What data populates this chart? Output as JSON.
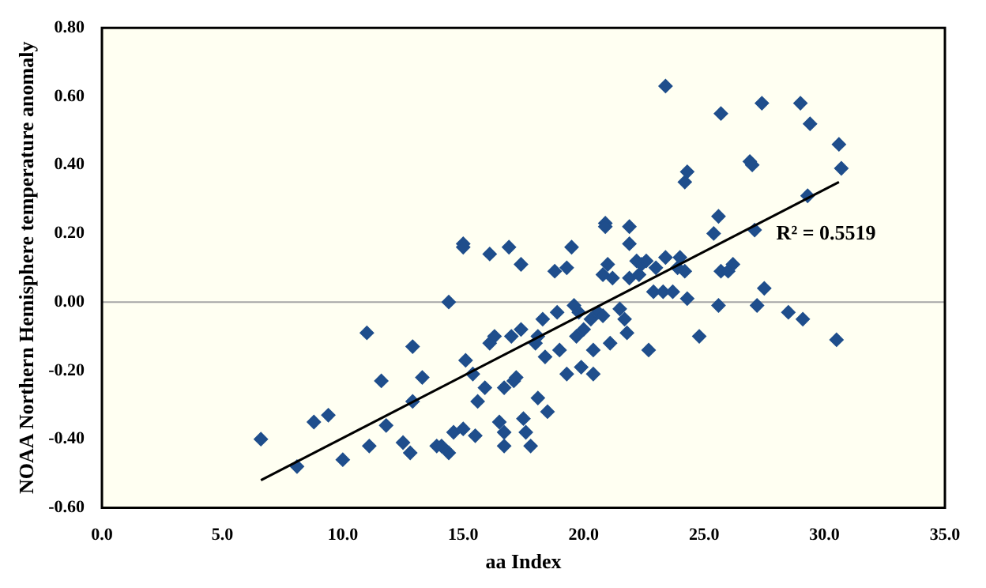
{
  "chart_data": {
    "type": "scatter",
    "xlabel": "aa Index",
    "ylabel": "NOAA Northern Hemisphere temperature anomaly",
    "xlim": [
      0,
      35
    ],
    "xticks": [
      {
        "value": 0,
        "label": "0.0"
      },
      {
        "value": 5,
        "label": "5.0"
      },
      {
        "value": 10,
        "label": "10.0"
      },
      {
        "value": 15,
        "label": "15.0"
      },
      {
        "value": 20,
        "label": "20.0"
      },
      {
        "value": 25,
        "label": "25.0"
      },
      {
        "value": 30,
        "label": "30.0"
      },
      {
        "value": 35,
        "label": "35.0"
      }
    ],
    "ylim": [
      -0.6,
      0.8
    ],
    "yticks": [
      {
        "value": -0.6,
        "label": "-0.60"
      },
      {
        "value": -0.4,
        "label": "-0.40"
      },
      {
        "value": -0.2,
        "label": "-0.20"
      },
      {
        "value": 0,
        "label": "0.00"
      },
      {
        "value": 0.2,
        "label": "0.20"
      },
      {
        "value": 0.4,
        "label": "0.40"
      },
      {
        "value": 0.6,
        "label": "0.60"
      },
      {
        "value": 0.8,
        "label": "0.80"
      }
    ],
    "grid": false,
    "legend": false,
    "ref_lines": [
      {
        "axis": "y",
        "value": 0,
        "color": "#a6a6a6"
      }
    ],
    "annotations": [
      "R² = 0.5519"
    ],
    "series": [
      {
        "type": "scatter",
        "marker": "diamond",
        "color": "#1f4e8c",
        "x": [
          6.6,
          8.1,
          8.8,
          9.4,
          10.0,
          11.0,
          11.1,
          11.6,
          11.8,
          12.5,
          12.8,
          12.9,
          12.9,
          13.3,
          13.9,
          14.1,
          14.4,
          14.4,
          14.6,
          15.0,
          15.0,
          15.0,
          15.1,
          15.4,
          15.5,
          15.6,
          15.9,
          16.1,
          16.1,
          16.3,
          16.5,
          16.7,
          16.7,
          16.7,
          16.9,
          17.0,
          17.1,
          17.2,
          17.4,
          17.5,
          17.6,
          17.4,
          17.8,
          18.0,
          18.1,
          18.1,
          18.3,
          18.4,
          18.5,
          18.8,
          18.9,
          19.0,
          19.3,
          19.3,
          19.5,
          19.6,
          19.7,
          19.8,
          19.9,
          20.0,
          20.3,
          20.4,
          20.4,
          20.6,
          20.8,
          20.9,
          20.9,
          20.8,
          21.0,
          21.1,
          21.2,
          21.5,
          21.7,
          21.8,
          21.9,
          21.9,
          21.9,
          22.2,
          22.3,
          22.4,
          22.6,
          22.7,
          22.9,
          23.0,
          23.3,
          23.4,
          23.4,
          23.7,
          23.9,
          24.0,
          24.2,
          24.3,
          24.2,
          24.3,
          24.8,
          25.4,
          25.6,
          25.6,
          25.7,
          25.7,
          26.0,
          26.2,
          26.9,
          27.0,
          27.1,
          27.2,
          27.4,
          27.5,
          28.5,
          29.0,
          29.1,
          29.4,
          29.3,
          30.6,
          30.7,
          30.5
        ],
        "values": [
          -0.4,
          -0.48,
          -0.35,
          -0.33,
          -0.46,
          -0.09,
          -0.42,
          -0.23,
          -0.36,
          -0.41,
          -0.44,
          -0.29,
          -0.13,
          -0.22,
          -0.42,
          -0.42,
          -0.44,
          0.0,
          -0.38,
          -0.37,
          0.17,
          0.16,
          -0.17,
          -0.21,
          -0.39,
          -0.29,
          -0.25,
          0.14,
          -0.12,
          -0.1,
          -0.35,
          -0.25,
          -0.42,
          -0.38,
          0.16,
          -0.1,
          -0.23,
          -0.22,
          -0.08,
          -0.34,
          -0.38,
          0.11,
          -0.42,
          -0.12,
          -0.1,
          -0.28,
          -0.05,
          -0.16,
          -0.32,
          0.09,
          -0.03,
          -0.14,
          0.1,
          -0.21,
          0.16,
          -0.01,
          -0.1,
          -0.03,
          -0.19,
          -0.08,
          -0.05,
          -0.14,
          -0.21,
          -0.03,
          -0.04,
          0.23,
          0.22,
          0.08,
          0.11,
          -0.12,
          0.07,
          -0.02,
          -0.05,
          -0.09,
          0.07,
          0.22,
          0.17,
          0.12,
          0.08,
          0.11,
          0.12,
          -0.14,
          0.03,
          0.1,
          0.03,
          0.63,
          0.13,
          0.03,
          0.1,
          0.13,
          0.09,
          0.01,
          0.35,
          0.38,
          -0.1,
          0.2,
          -0.01,
          0.25,
          0.55,
          0.09,
          0.09,
          0.11,
          0.41,
          0.4,
          0.21,
          -0.01,
          0.58,
          0.04,
          -0.03,
          0.58,
          -0.05,
          0.52,
          0.31,
          0.46,
          0.39,
          -0.11
        ]
      },
      {
        "type": "line",
        "color": "#000000",
        "x": [
          6.6,
          30.6
        ],
        "values": [
          -0.52,
          0.35
        ]
      }
    ]
  }
}
